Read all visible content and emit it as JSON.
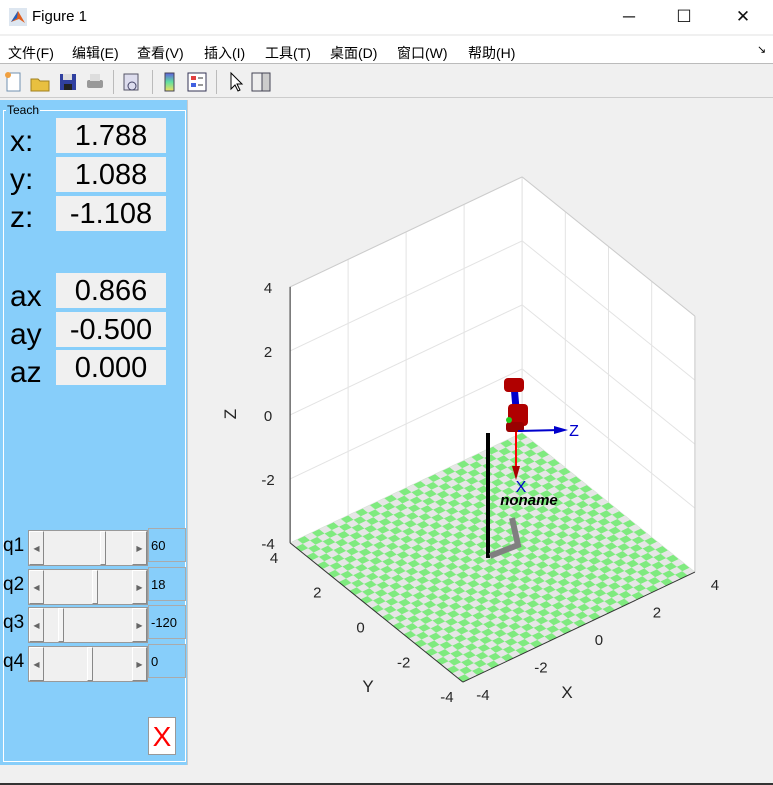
{
  "window": {
    "title": "Figure 1",
    "minimize": "─",
    "maximize": "☐",
    "close": "✕"
  },
  "menu": [
    "文件(F)",
    "编辑(E)",
    "查看(V)",
    "插入(I)",
    "工具(T)",
    "桌面(D)",
    "窗口(W)",
    "帮助(H)"
  ],
  "toolbar": [
    "new-figure-icon",
    "open-icon",
    "save-icon",
    "print-icon",
    "link-icon",
    "colorbar-icon",
    "legend-icon",
    "pointer-icon",
    "property-inspector-icon"
  ],
  "teach": {
    "title": "Teach",
    "position": [
      {
        "label": "x:",
        "value": "1.788"
      },
      {
        "label": "y:",
        "value": "1.088"
      },
      {
        "label": "z:",
        "value": "-1.108"
      }
    ],
    "orientation": [
      {
        "label": "ax",
        "value": "0.866"
      },
      {
        "label": "ay",
        "value": "-0.500"
      },
      {
        "label": "az",
        "value": "0.000"
      }
    ],
    "joints": [
      {
        "label": "q1",
        "value": "60",
        "position": 0.68
      },
      {
        "label": "q2",
        "value": "18",
        "position": 0.58
      },
      {
        "label": "q3",
        "value": "-120",
        "position": 0.17
      },
      {
        "label": "q4",
        "value": "0",
        "position": 0.53
      }
    ],
    "close_label": "X"
  },
  "plot": {
    "xlabel": "X",
    "ylabel": "Y",
    "zlabel": "Z",
    "xticks": [
      "-4",
      "-2",
      "0",
      "2",
      "4"
    ],
    "yticks": [
      "-4",
      "-2",
      "0",
      "2",
      "4"
    ],
    "zticks": [
      "-4",
      "-2",
      "0",
      "2",
      "4"
    ],
    "robot_name": "noname",
    "frame_x": "X",
    "frame_z": "Z",
    "colors": {
      "floor_a": "#7fea7f",
      "floor_b": "#e6e6e6",
      "link": "#0000cc",
      "joint": "#b00000",
      "frame_x": "#ff0000",
      "frame_z": "#0000cc"
    }
  }
}
